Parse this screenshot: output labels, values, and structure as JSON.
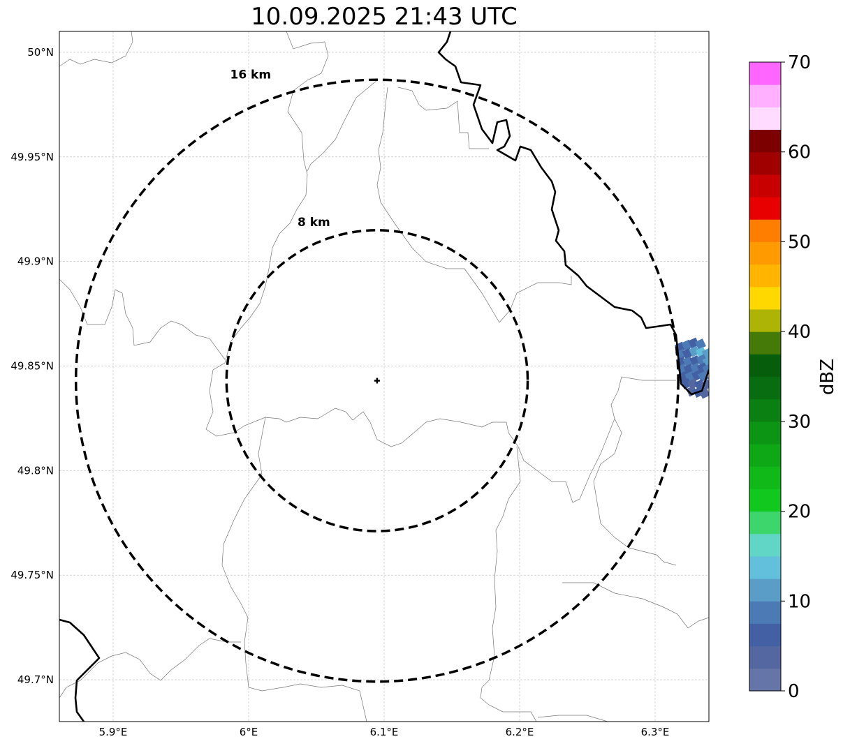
{
  "title": "10.09.2025 21:43 UTC",
  "chart_data": {
    "type": "heatmap",
    "subtype": "radar-reflectivity-map",
    "title": "10.09.2025 21:43 UTC",
    "lon_range": [
      5.8603,
      6.3397
    ],
    "lat_range": [
      49.68,
      50.01
    ],
    "grid": true,
    "x_ticks": [
      {
        "value": 5.9,
        "label": "5.9°E"
      },
      {
        "value": 6.0,
        "label": "6°E"
      },
      {
        "value": 6.1,
        "label": "6.1°E"
      },
      {
        "value": 6.2,
        "label": "6.2°E"
      },
      {
        "value": 6.3,
        "label": "6.3°E"
      }
    ],
    "y_ticks": [
      {
        "value": 50.0,
        "label": "50°N"
      },
      {
        "value": 49.95,
        "label": "49.95°N"
      },
      {
        "value": 49.9,
        "label": "49.9°N"
      },
      {
        "value": 49.85,
        "label": "49.85°N"
      },
      {
        "value": 49.8,
        "label": "49.8°N"
      },
      {
        "value": 49.75,
        "label": "49.75°N"
      },
      {
        "value": 49.7,
        "label": "49.7°N"
      }
    ],
    "radar_center": {
      "lon": 6.0948,
      "lat": 49.843
    },
    "range_rings": [
      {
        "radius_km": 8,
        "label": "8 km"
      },
      {
        "radius_km": 16,
        "label": "16 km"
      }
    ],
    "colorbar": {
      "label": "dBZ",
      "min": 0,
      "max": 70,
      "step": 2.5,
      "tick_labels": [
        "0",
        "10",
        "20",
        "30",
        "40",
        "50",
        "60",
        "70"
      ],
      "colors": [
        "#6675a8",
        "#5567a0",
        "#4460a4",
        "#4c7ab4",
        "#5a9ec8",
        "#62c0dc",
        "#62d6c6",
        "#3cd66c",
        "#10c81e",
        "#10b818",
        "#0ea816",
        "#0c9414",
        "#0a8012",
        "#086c10",
        "#065e0c",
        "#467a08",
        "#aeb406",
        "#ffd800",
        "#ffb400",
        "#ff9a00",
        "#ff7e00",
        "#e80000",
        "#c80000",
        "#a00000",
        "#7c0000",
        "#ffdcff",
        "#ffb0ff",
        "#ff66ff",
        "#ee33ee"
      ]
    },
    "echo_cells": [
      [
        6.3185,
        49.859,
        5
      ],
      [
        6.3235,
        49.86,
        7.5
      ],
      [
        6.3285,
        49.861,
        5
      ],
      [
        6.3335,
        49.8605,
        7.5
      ],
      [
        6.319,
        49.8555,
        7.5
      ],
      [
        6.324,
        49.856,
        5
      ],
      [
        6.329,
        49.857,
        10
      ],
      [
        6.334,
        49.8565,
        12.5
      ],
      [
        6.3385,
        49.856,
        10
      ],
      [
        6.3195,
        49.852,
        5
      ],
      [
        6.3245,
        49.852,
        7.5
      ],
      [
        6.3295,
        49.8525,
        5
      ],
      [
        6.3345,
        49.853,
        7.5
      ],
      [
        6.339,
        49.852,
        10
      ],
      [
        6.32,
        49.8485,
        7.5
      ],
      [
        6.325,
        49.8485,
        5
      ],
      [
        6.33,
        49.849,
        7.5
      ],
      [
        6.335,
        49.849,
        5
      ],
      [
        6.339,
        49.8485,
        7.5
      ],
      [
        6.321,
        49.845,
        5
      ],
      [
        6.326,
        49.845,
        7.5
      ],
      [
        6.331,
        49.8455,
        5
      ],
      [
        6.3355,
        49.845,
        7.5
      ],
      [
        6.323,
        49.8415,
        5
      ],
      [
        6.328,
        49.8415,
        2.5
      ],
      [
        6.333,
        49.841,
        5
      ],
      [
        6.3375,
        49.841,
        2.5
      ],
      [
        6.327,
        49.838,
        2.5
      ],
      [
        6.332,
        49.8375,
        5
      ],
      [
        6.3365,
        49.837,
        2.5
      ]
    ]
  }
}
